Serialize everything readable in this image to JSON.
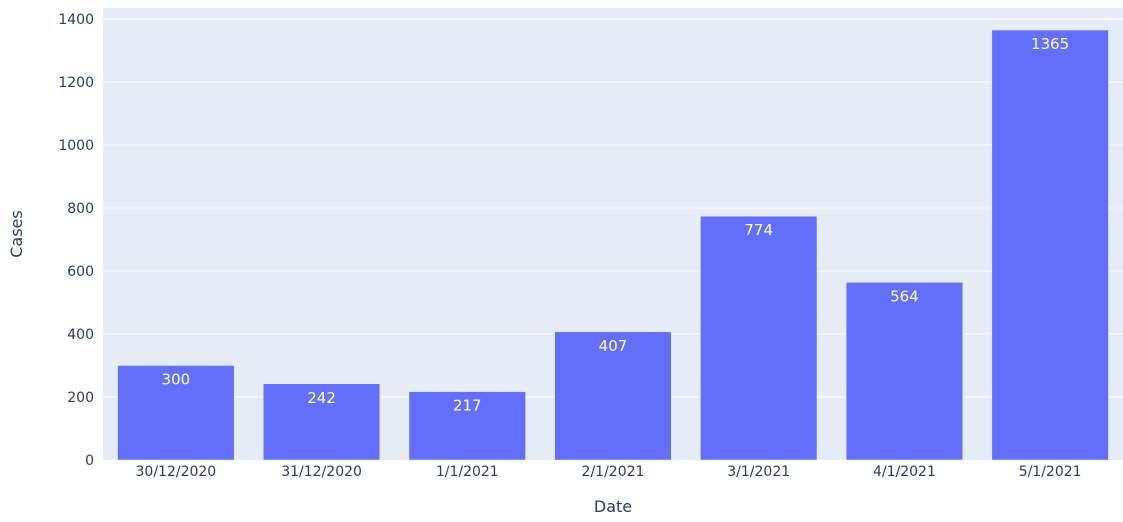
{
  "chart_data": {
    "type": "bar",
    "categories": [
      "30/12/2020",
      "31/12/2020",
      "1/1/2021",
      "2/1/2021",
      "3/1/2021",
      "4/1/2021",
      "5/1/2021"
    ],
    "values": [
      300,
      242,
      217,
      407,
      774,
      564,
      1365
    ],
    "data_labels": [
      "300",
      "242",
      "217",
      "407",
      "774",
      "564",
      "1365"
    ],
    "xlabel": "Date",
    "ylabel": "Cases",
    "ylim": [
      0,
      1435
    ],
    "yticks": [
      0,
      200,
      400,
      600,
      800,
      1000,
      1200,
      1400
    ],
    "ytick_labels": [
      "0",
      "200",
      "400",
      "600",
      "800",
      "1000",
      "1200",
      "1400"
    ],
    "grid": true,
    "legend": false,
    "colors": {
      "bar": "#636efa",
      "plot_background": "#e5ecf6",
      "gridline": "#ffffff",
      "data_label": "#ffffff",
      "axis_text": "#2a3f5f"
    }
  }
}
